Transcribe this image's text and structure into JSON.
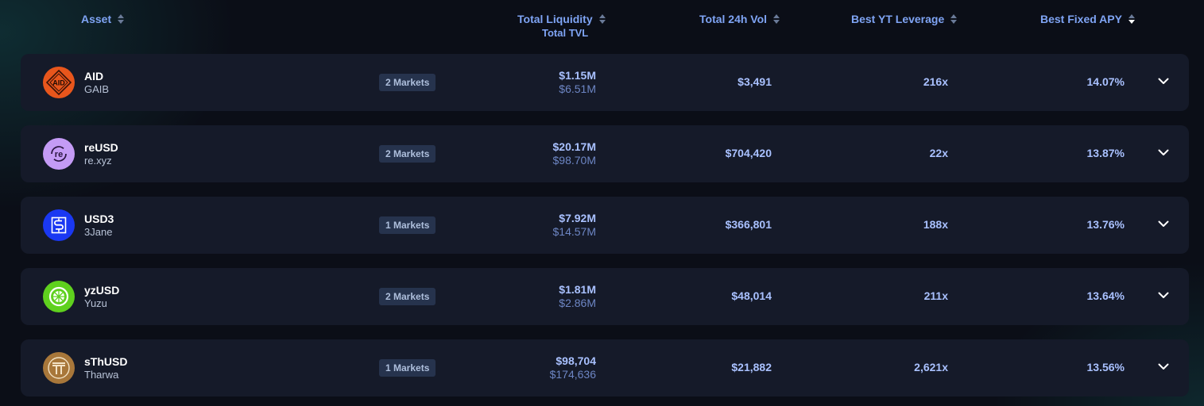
{
  "header": {
    "asset": "Asset",
    "total_liquidity": "Total Liquidity",
    "total_tvl": "Total TVL",
    "total_24h_vol": "Total 24h Vol",
    "best_yt_leverage": "Best YT Leverage",
    "best_fixed_apy": "Best Fixed APY",
    "active_sort": "best_fixed_apy"
  },
  "rows": [
    {
      "symbol": "AID",
      "issuer": "GAIB",
      "markets": "2 Markets",
      "liquidity": "$1.15M",
      "tvl": "$6.51M",
      "volume": "$3,491",
      "leverage": "216x",
      "apy": "14.07%",
      "icon": "aid-gaib-logo-icon",
      "logo_text": "AID",
      "color": "#e8561c"
    },
    {
      "symbol": "reUSD",
      "issuer": "re.xyz",
      "markets": "2 Markets",
      "liquidity": "$20.17M",
      "tvl": "$98.70M",
      "volume": "$704,420",
      "leverage": "22x",
      "apy": "13.87%",
      "icon": "reusd-logo-icon",
      "logo_text": "re",
      "color": "#c49bf5"
    },
    {
      "symbol": "USD3",
      "issuer": "3Jane",
      "markets": "1 Markets",
      "liquidity": "$7.92M",
      "tvl": "$14.57M",
      "volume": "$366,801",
      "leverage": "188x",
      "apy": "13.76%",
      "icon": "usd3-logo-icon",
      "logo_text": "",
      "color": "#1a38f2"
    },
    {
      "symbol": "yzUSD",
      "issuer": "Yuzu",
      "markets": "2 Markets",
      "liquidity": "$1.81M",
      "tvl": "$2.86M",
      "volume": "$48,014",
      "leverage": "211x",
      "apy": "13.64%",
      "icon": "yuzu-logo-icon",
      "logo_text": "",
      "color": "#5fd11e"
    },
    {
      "symbol": "sThUSD",
      "issuer": "Tharwa",
      "markets": "1 Markets",
      "liquidity": "$98,704",
      "tvl": "$174,636",
      "volume": "$21,882",
      "leverage": "2,621x",
      "apy": "13.56%",
      "icon": "tharwa-logo-icon",
      "logo_text": "",
      "color": "#a8773a"
    }
  ]
}
